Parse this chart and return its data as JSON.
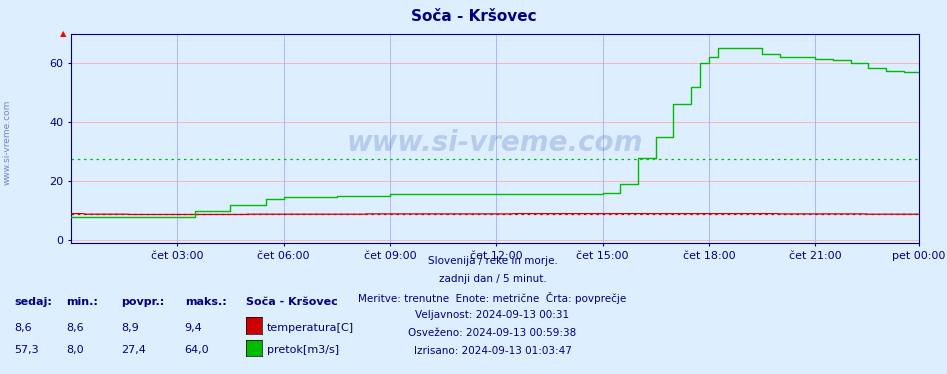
{
  "title": "Soča - Kršovec",
  "title_color": "#000080",
  "bg_color": "#ddeeff",
  "plot_bg_color": "#ddeeff",
  "grid_color_h": "#ffaaaa",
  "grid_color_v": "#aaaaff",
  "xlim": [
    0,
    287
  ],
  "ylim": [
    -1,
    70
  ],
  "yticks": [
    0,
    20,
    40,
    60
  ],
  "xtick_labels": [
    "čet 03:00",
    "čet 06:00",
    "čet 09:00",
    "čet 12:00",
    "čet 15:00",
    "čet 18:00",
    "čet 21:00",
    "pet 00:00"
  ],
  "xtick_positions": [
    36,
    72,
    108,
    144,
    180,
    216,
    252,
    287
  ],
  "temp_color": "#cc0000",
  "flow_color": "#00bb00",
  "avg_temp": 8.9,
  "avg_flow": 27.4,
  "watermark_text": "www.si-vreme.com",
  "info_lines": [
    "Slovenija / reke in morje.",
    "zadnji dan / 5 minut.",
    "Meritve: trenutne  Enote: metrične  Črta: povprečje",
    "Veljavnost: 2024-09-13 00:31",
    "Osveženo: 2024-09-13 00:59:38",
    "Izrisano: 2024-09-13 01:03:47"
  ],
  "legend_title": "Soča - Kršovec",
  "legend_items": [
    {
      "label": "temperatura[C]",
      "color": "#cc0000",
      "sedaj": "8,6",
      "min": "8,6",
      "povpr": "8,9",
      "maks": "9,4"
    },
    {
      "label": "pretok[m3/s]",
      "color": "#00bb00",
      "sedaj": "57,3",
      "min": "8,0",
      "povpr": "27,4",
      "maks": "64,0"
    }
  ],
  "table_headers": [
    "sedaj:",
    "min.:",
    "povpr.:",
    "maks.:"
  ],
  "left_label": "www.si-vreme.com"
}
